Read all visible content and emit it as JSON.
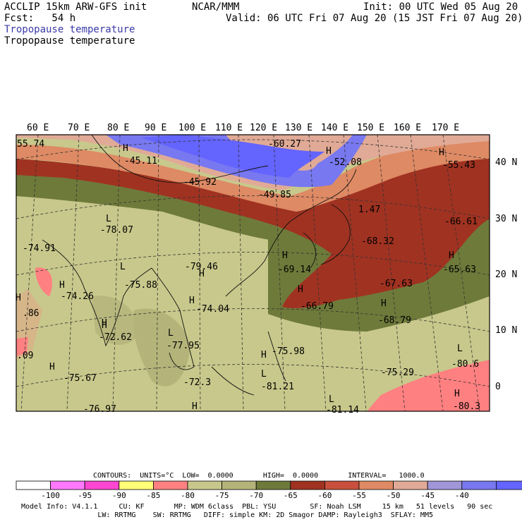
{
  "header": {
    "model": "ACCLIP 15km ARW-GFS init",
    "center": "NCAR/MMM",
    "init": "Init: 00 UTC Wed 05 Aug 20",
    "fcst": "Fcst:   54 h",
    "valid": "Valid: 06 UTC Fri 07 Aug 20 (15 JST Fri 07 Aug 20)",
    "field_line1": "Tropopause temperature",
    "field_line2": "Tropopause temperature"
  },
  "map": {
    "lon_labels": [
      "60 E",
      "70 E",
      "80 E",
      "90 E",
      "100 E",
      "110 E",
      "120 E",
      "130 E",
      "140 E",
      "150 E",
      "160 E",
      "170 E"
    ],
    "lat_labels": [
      "40 N",
      "30 N",
      "20 N",
      "10 N",
      "0"
    ],
    "values": [
      {
        "text": "55.74"
      },
      {
        "text": "H"
      },
      {
        "text": "-45.11"
      },
      {
        "text": "-60.27"
      },
      {
        "text": "H"
      },
      {
        "text": "-52.08"
      },
      {
        "text": "H"
      },
      {
        "text": "-55.43"
      },
      {
        "text": "-45.92"
      },
      {
        "text": "-49.85"
      },
      {
        "text": "1.47"
      },
      {
        "text": "L"
      },
      {
        "text": "-78.07"
      },
      {
        "text": "-66.61"
      },
      {
        "text": "-68.32"
      },
      {
        "text": "H"
      },
      {
        "text": "-74.91"
      },
      {
        "text": "H"
      },
      {
        "text": "L"
      },
      {
        "text": "-79.46"
      },
      {
        "text": "H"
      },
      {
        "text": "-69.14"
      },
      {
        "text": "H"
      },
      {
        "text": "-65.63"
      },
      {
        "text": "H"
      },
      {
        "text": "-75.88"
      },
      {
        "text": "-74.26"
      },
      {
        "text": "-67.63"
      },
      {
        "text": "H"
      },
      {
        "text": "-74.04"
      },
      {
        "text": "H"
      },
      {
        "text": ".86"
      },
      {
        "text": "-66.79"
      },
      {
        "text": "H"
      },
      {
        "text": "H"
      },
      {
        "text": "-68.79"
      },
      {
        "text": "H"
      },
      {
        "text": "-72.62"
      },
      {
        "text": "L"
      },
      {
        "text": "-77.95"
      },
      {
        "text": "L"
      },
      {
        "text": ".09"
      },
      {
        "text": "-75.98"
      },
      {
        "text": "H"
      },
      {
        "text": "-80.6"
      },
      {
        "text": "-75.67"
      },
      {
        "text": "H"
      },
      {
        "text": "-75.29"
      },
      {
        "text": "-72.3"
      },
      {
        "text": "L"
      },
      {
        "text": "-81.21"
      },
      {
        "text": "H"
      },
      {
        "text": "-80.3"
      },
      {
        "text": "-76.97"
      },
      {
        "text": "H"
      },
      {
        "text": "L"
      },
      {
        "text": "-81.14"
      }
    ]
  },
  "colorbar": {
    "boxes": [
      "#ffffff",
      "#ff78ff",
      "#ff46d2",
      "#ffff78",
      "#ff8080",
      "#c8c88c",
      "#b4b47a",
      "#6e7a3a",
      "#a03221",
      "#c8503c",
      "#de8a64",
      "#e0aa96",
      "#a096d8",
      "#7878f0",
      "#6464ff"
    ],
    "labels": [
      "-100",
      "-95",
      "-90",
      "-85",
      "-80",
      "-75",
      "-70",
      "-65",
      "-60",
      "-55",
      "-50",
      "-45",
      "-40"
    ],
    "unit": "°C"
  },
  "contours": {
    "text": "CONTOURS:  UNITS=°C  LOW=  0.0000       HIGH=  0.0000       INTERVAL=   1000.0"
  },
  "footer": {
    "line1": "Model Info: V4.1.1     CU: KF       MP: WDM 6class  PBL: YSU        SF: Noah LSM     15 km   51 levels   90 sec",
    "line2": "                  LW: RRTMG    SW: RRTMG   DIFF: simple KM: 2D Smagor DAMP: Rayleigh3  SFLAY: MM5"
  }
}
